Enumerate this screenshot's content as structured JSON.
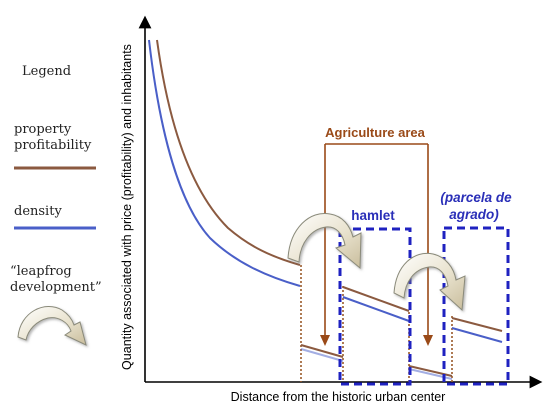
{
  "legend": {
    "title": "Legend",
    "property_profitability": "property profitability",
    "density": "density",
    "leapfrog": "“leapfrog development”"
  },
  "axes": {
    "y_label": "Quantity associated with price (profitability) and inhabitants",
    "x_label": "Distance from the historic urban center"
  },
  "annotations": {
    "agriculture_area": "Agriculture area",
    "hamlet": "hamlet",
    "parcela_line1": "(parcela de",
    "parcela_line2": "agrado)"
  },
  "colors": {
    "profitability": "#8B5A40",
    "density": "#4A5FC8",
    "agriculture": "#9A4A18",
    "hamlet_box": "#1F22C0",
    "annotation_text": "#2A2FB8"
  }
}
